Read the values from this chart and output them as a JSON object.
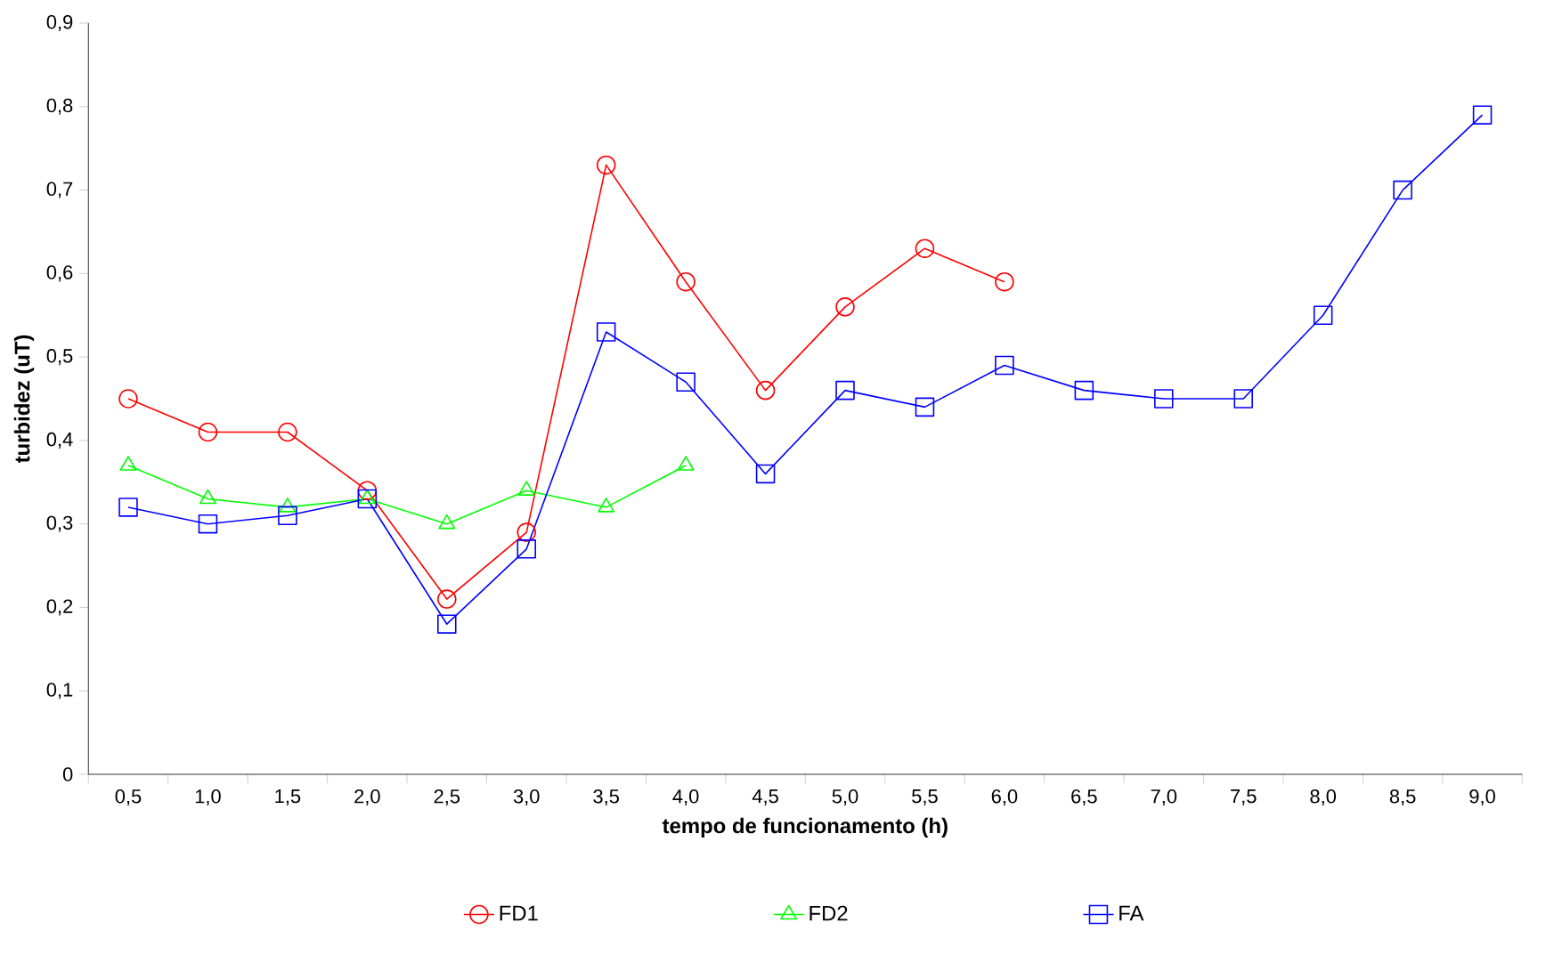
{
  "chart_data": {
    "type": "line",
    "xlabel": "tempo de funcionamento (h)",
    "ylabel": "turbidez (uT)",
    "categories": [
      "0,5",
      "1,0",
      "1,5",
      "2,0",
      "2,5",
      "3,0",
      "3,5",
      "4,0",
      "4,5",
      "5,0",
      "5,5",
      "6,0",
      "6,5",
      "7,0",
      "7,5",
      "8,0",
      "8,5",
      "9,0"
    ],
    "series": [
      {
        "name": "FD1",
        "color": "#ff0000",
        "marker": "circle",
        "values": [
          0.45,
          0.41,
          0.41,
          0.34,
          0.21,
          0.29,
          0.73,
          0.59,
          0.46,
          0.56,
          0.63,
          0.59,
          null,
          null,
          null,
          null,
          null,
          null
        ]
      },
      {
        "name": "FD2",
        "color": "#00ff00",
        "marker": "triangle",
        "values": [
          0.37,
          0.33,
          0.32,
          0.33,
          0.3,
          0.34,
          0.32,
          0.37,
          null,
          null,
          null,
          null,
          null,
          null,
          null,
          null,
          null,
          null
        ]
      },
      {
        "name": "FA",
        "color": "#0000ff",
        "marker": "square",
        "values": [
          0.32,
          0.3,
          0.31,
          0.33,
          0.18,
          0.27,
          0.53,
          0.47,
          0.36,
          0.46,
          0.44,
          0.49,
          0.46,
          0.45,
          0.45,
          0.55,
          0.7,
          0.79
        ]
      }
    ],
    "ylim": [
      0,
      0.9
    ],
    "yticks": [
      0,
      {
        "value": 0.1,
        "label": "0,1"
      },
      {
        "value": 0.2,
        "label": "0,2"
      },
      {
        "value": 0.3,
        "label": "0,3"
      },
      {
        "value": 0.4,
        "label": "0,4"
      },
      {
        "value": 0.5,
        "label": "0,5"
      },
      {
        "value": 0.6,
        "label": "0,6"
      },
      {
        "value": 0.7,
        "label": "0,7"
      },
      {
        "value": 0.8,
        "label": "0,8"
      },
      {
        "value": 0.9,
        "label": "0,9"
      }
    ],
    "grid": false,
    "legend": "bottom",
    "line_style": "solid"
  }
}
